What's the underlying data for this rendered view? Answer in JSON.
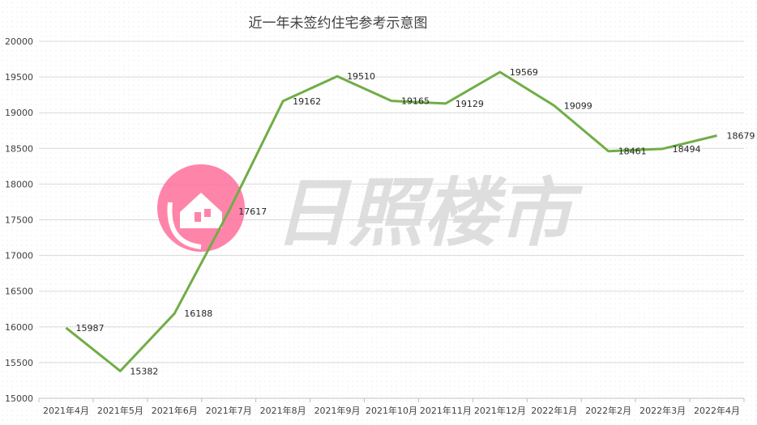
{
  "chart_data": {
    "type": "line",
    "title": "近一年未签约住宅参考示意图",
    "xlabel": "",
    "ylabel": "",
    "categories": [
      "2021年4月",
      "2021年5月",
      "2021年6月",
      "2021年7月",
      "2021年8月",
      "2021年9月",
      "2021年10月",
      "2021年11月",
      "2021年12月",
      "2022年1月",
      "2022年2月",
      "2022年3月",
      "2022年4月"
    ],
    "series": [
      {
        "values": [
          15987,
          15382,
          16188,
          17617,
          19162,
          19510,
          19165,
          19129,
          19569,
          19099,
          18461,
          18494,
          18679
        ],
        "color": "#70ad47"
      }
    ],
    "ylim": [
      15000,
      20000
    ],
    "yticks": [
      15000,
      15500,
      16000,
      16500,
      17000,
      17500,
      18000,
      18500,
      19000,
      19500,
      20000
    ],
    "grid": true,
    "legend": "none"
  },
  "watermark": {
    "text": "日照楼市",
    "logo_color": "#ff6f9c",
    "text_color": "#d9d9d9"
  }
}
